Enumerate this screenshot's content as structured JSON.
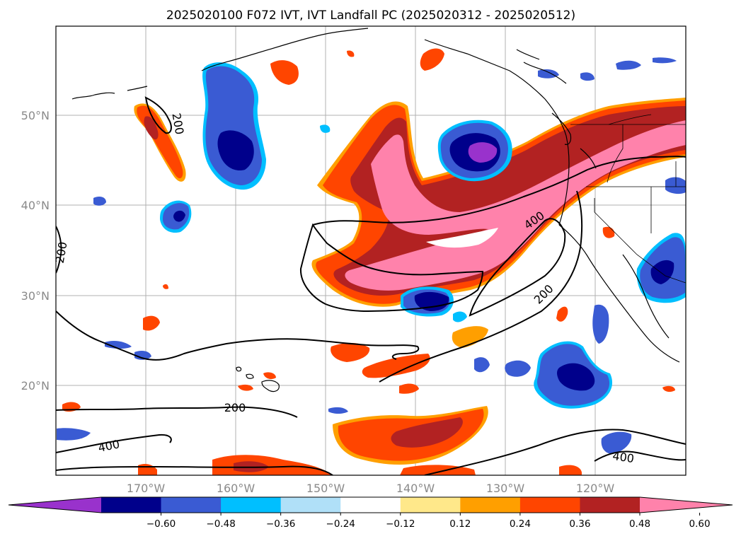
{
  "title": "2025020100 F072 IVT, IVT Landfall PC (2025020312 - 2025020512)",
  "map": {
    "lon_labels": [
      "170°W",
      "160°W",
      "150°W",
      "140°W",
      "130°W",
      "120°W"
    ],
    "lat_labels": [
      "50°N",
      "40°N",
      "30°N",
      "20°N"
    ],
    "grid": true
  },
  "ivt_contour_labels": [
    "200",
    "200",
    "400",
    "200",
    "200",
    "400",
    "400"
  ],
  "colorbar": {
    "ticks": [
      "−0.60",
      "−0.48",
      "−0.36",
      "−0.24",
      "−0.12",
      "0.12",
      "0.24",
      "0.36",
      "0.48",
      "0.60"
    ],
    "colors": [
      "#9932cc",
      "#00008b",
      "#3a5bd3",
      "#00bfff",
      "#b0e0f8",
      "#ffffff",
      "#ffe88a",
      "#ff9f00",
      "#ff4500",
      "#b22222",
      "#ff82ab"
    ],
    "extend": "both"
  }
}
